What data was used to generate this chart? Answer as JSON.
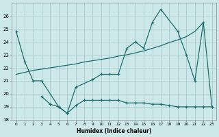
{
  "xlabel": "Humidex (Indice chaleur)",
  "background_color": "#cce8e8",
  "grid_color": "#aacccc",
  "line_color": "#1a6e6e",
  "xlim": [
    -0.5,
    23.5
  ],
  "ylim": [
    18,
    27
  ],
  "yticks": [
    18,
    19,
    20,
    21,
    22,
    23,
    24,
    25,
    26
  ],
  "xticks": [
    0,
    1,
    2,
    3,
    4,
    5,
    6,
    7,
    8,
    9,
    10,
    11,
    12,
    13,
    14,
    15,
    16,
    17,
    18,
    19,
    20,
    21,
    22,
    23
  ],
  "line1_x": [
    0,
    1,
    2,
    3,
    5,
    6,
    7,
    9,
    10,
    11,
    12,
    13,
    14,
    15,
    16,
    17,
    19,
    20,
    21,
    22,
    23
  ],
  "line1_y": [
    24.8,
    22.5,
    21.0,
    21.0,
    19.0,
    18.5,
    20.5,
    21.1,
    21.5,
    21.5,
    21.5,
    23.5,
    24.0,
    23.5,
    25.5,
    26.5,
    24.8,
    23.0,
    21.0,
    25.5,
    19.0
  ],
  "line2_x": [
    3,
    4,
    5,
    6,
    7,
    8,
    9,
    10,
    11,
    12,
    13,
    14,
    15,
    16,
    17,
    18,
    19,
    20,
    21,
    22,
    23
  ],
  "line2_y": [
    19.8,
    19.2,
    19.0,
    18.5,
    19.1,
    19.5,
    19.5,
    19.5,
    19.5,
    19.5,
    19.3,
    19.3,
    19.3,
    19.2,
    19.2,
    19.1,
    19.0,
    19.0,
    19.0,
    19.0,
    19.0
  ],
  "line3_x": [
    0,
    1,
    2,
    3,
    4,
    5,
    6,
    7,
    8,
    9,
    10,
    11,
    12,
    13,
    14,
    15,
    16,
    17,
    18,
    19,
    20,
    21,
    22
  ],
  "line3_y": [
    21.5,
    21.65,
    21.8,
    21.9,
    22.0,
    22.1,
    22.2,
    22.3,
    22.45,
    22.55,
    22.65,
    22.75,
    22.9,
    23.0,
    23.15,
    23.3,
    23.5,
    23.7,
    23.95,
    24.15,
    24.4,
    24.8,
    25.5
  ]
}
